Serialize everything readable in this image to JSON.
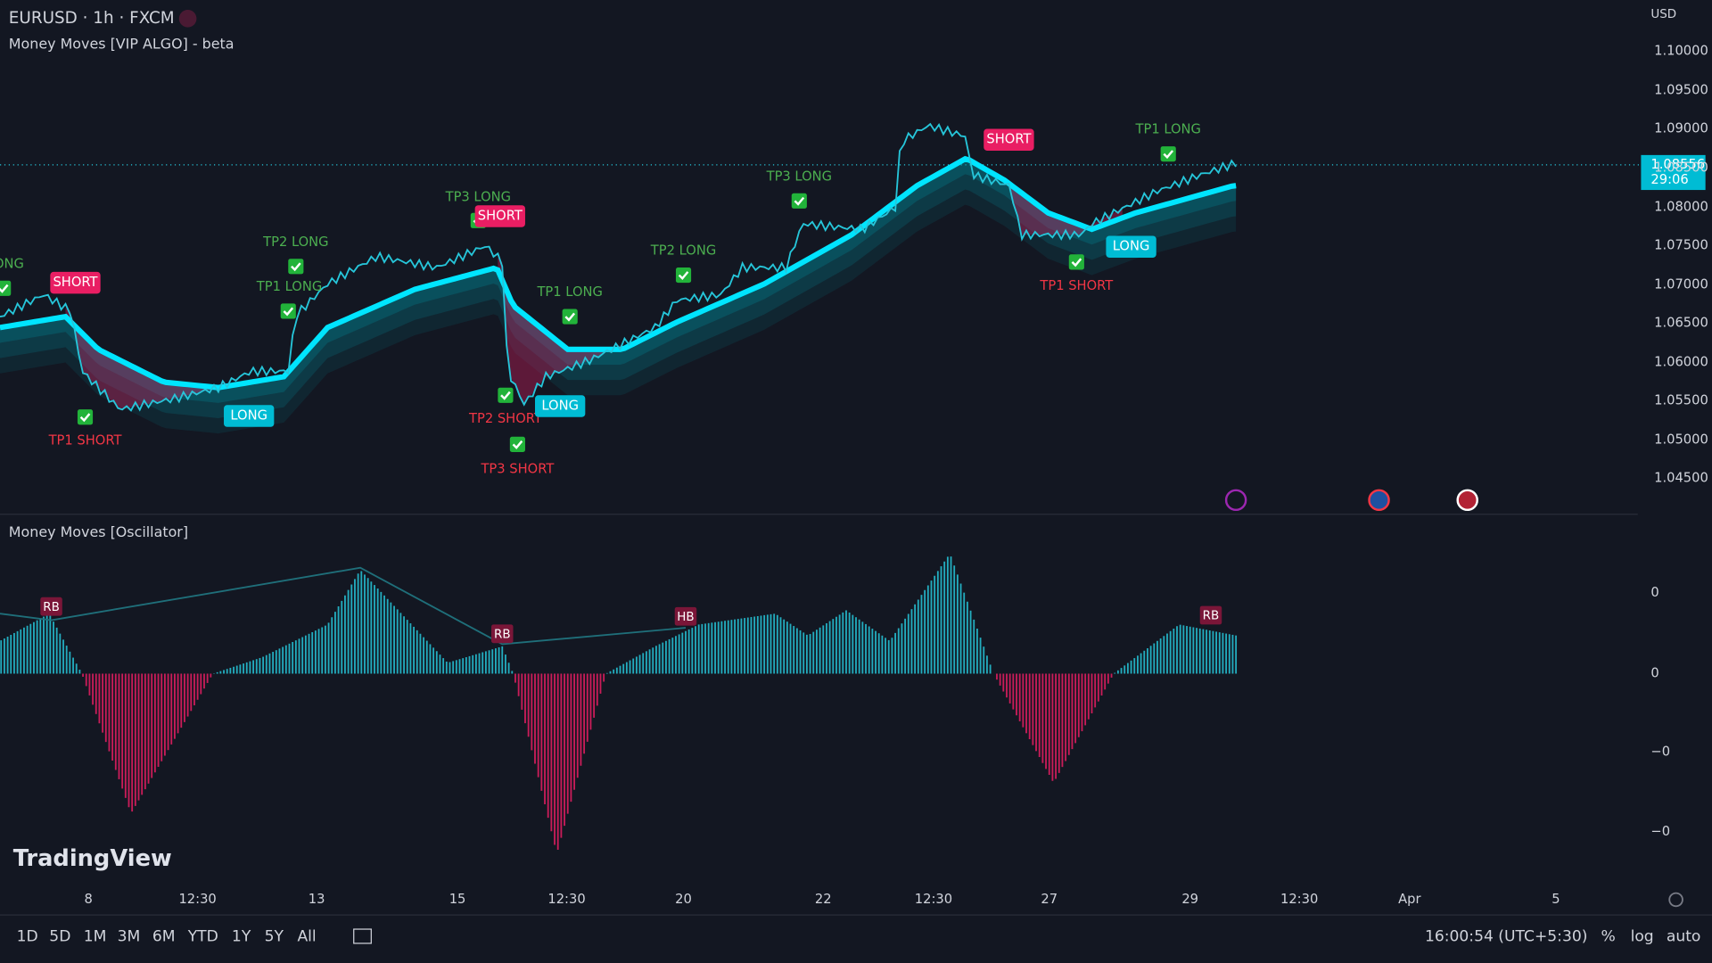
{
  "header": {
    "symbol": "EURUSD · 1h · FXCM",
    "indicator": "Money Moves [VIP ALGO] - beta",
    "currency": "USD"
  },
  "price_axis": {
    "labels": [
      "1.10000",
      "1.09500",
      "1.09000",
      "1.08500",
      "1.08000",
      "1.07500",
      "1.07000",
      "1.06500",
      "1.06000",
      "1.05500",
      "1.05000",
      "1.04500"
    ],
    "current_price": "1.08556",
    "countdown": "29:06"
  },
  "signals": [
    "LONG",
    "SHORT",
    "TP1 SHORT",
    "LONG",
    "TP2 LONG",
    "TP1 LONG",
    "TP3 LONG",
    "SHORT",
    "TP2 SHORT",
    "TP3 SHORT",
    "TP1 LONG",
    "LONG",
    "TP2 LONG",
    "TP3 LONG",
    "SHORT",
    "TP1 LONG",
    "TP1 SHORT",
    "LONG"
  ],
  "oscillator": {
    "title": "Money Moves [Oscillator]",
    "markers": [
      "RB",
      "RB",
      "HB",
      "RB"
    ],
    "axis_labels": [
      "0",
      "0",
      "−0",
      "−0"
    ]
  },
  "time_axis": [
    "8",
    "12:30",
    "13",
    "15",
    "12:30",
    "20",
    "22",
    "12:30",
    "27",
    "29",
    "12:30",
    "Apr",
    "5"
  ],
  "logo": "TradingView",
  "toolbar": {
    "ranges": [
      "1D",
      "5D",
      "1M",
      "3M",
      "6M",
      "YTD",
      "1Y",
      "5Y",
      "All"
    ],
    "clock": "16:00:54 (UTC+5:30)",
    "options": [
      "%",
      "log",
      "auto"
    ]
  }
}
